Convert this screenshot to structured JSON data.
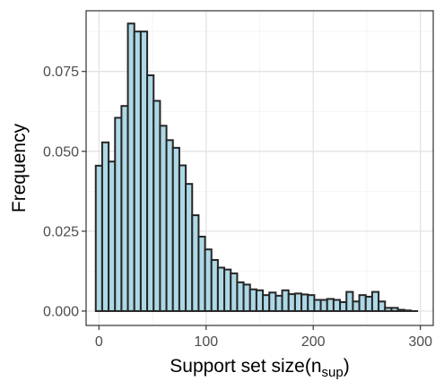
{
  "chart_data": {
    "type": "bar",
    "title": "",
    "xlabel": {
      "main": "Support set size(n",
      "subscript": "sup",
      "end": ")"
    },
    "ylabel": "Frequency",
    "xlim": [
      -12,
      312
    ],
    "ylim": [
      -0.0045,
      0.094
    ],
    "x_ticks": [
      0,
      100,
      200,
      300
    ],
    "x_tick_labels": [
      "0",
      "100",
      "200",
      "300"
    ],
    "y_ticks": [
      0,
      0.025,
      0.05,
      0.075
    ],
    "y_tick_labels": [
      "0.000",
      "0.025",
      "0.050",
      "0.075"
    ],
    "y_minor_ticks": [
      0.0125,
      0.0375,
      0.0625,
      0.0875
    ],
    "x_minor_ticks": [
      50,
      150,
      250
    ],
    "grid": true,
    "bin_width": 6,
    "bin_start": -3,
    "values": [
      0.0455,
      0.0528,
      0.0468,
      0.0605,
      0.0642,
      0.09,
      0.0875,
      0.0875,
      0.0738,
      0.0658,
      0.058,
      0.0535,
      0.0511,
      0.0456,
      0.0398,
      0.03,
      0.0233,
      0.0193,
      0.016,
      0.0136,
      0.013,
      0.0118,
      0.009,
      0.0083,
      0.0068,
      0.0065,
      0.005,
      0.0058,
      0.0048,
      0.0065,
      0.0053,
      0.0055,
      0.0052,
      0.005,
      0.0035,
      0.0035,
      0.0038,
      0.0035,
      0.0028,
      0.006,
      0.003,
      0.005,
      0.0045,
      0.006,
      0.003,
      0.001,
      0.001,
      0.0004,
      0.0002,
      0.0
    ],
    "bar_fill": "#add8e6",
    "bar_stroke": "#262626"
  }
}
